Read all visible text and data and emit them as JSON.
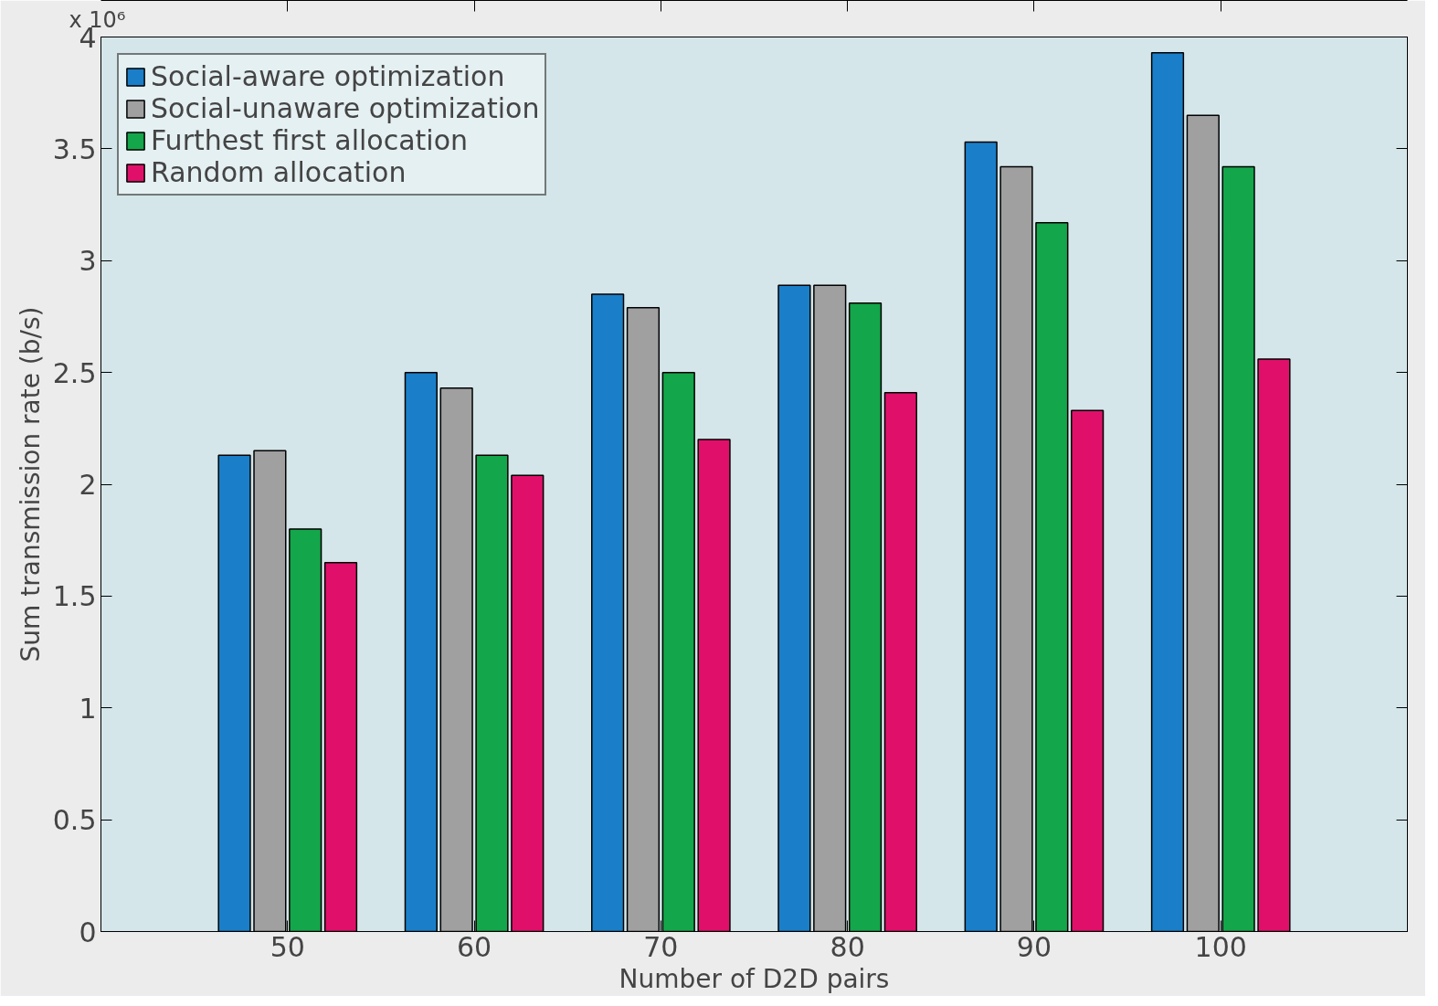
{
  "chart_data": {
    "type": "bar",
    "xlabel": "Number of D2D pairs",
    "ylabel": "Sum transmission rate (b/s)",
    "annotations": [
      "x 10⁶"
    ],
    "categories": [
      "50",
      "60",
      "70",
      "80",
      "90",
      "100"
    ],
    "series": [
      {
        "name": "Social-aware optimization",
        "color": "#1a7fc8",
        "values": [
          2.13,
          2.5,
          2.85,
          2.89,
          3.53,
          3.93
        ]
      },
      {
        "name": "Social-unaware optimization",
        "color": "#a0a0a0",
        "values": [
          2.15,
          2.43,
          2.79,
          2.89,
          3.42,
          3.65
        ]
      },
      {
        "name": "Furthest first allocation",
        "color": "#13a64a",
        "values": [
          1.8,
          2.13,
          2.5,
          2.81,
          3.17,
          3.42
        ]
      },
      {
        "name": "Random allocation",
        "color": "#e0106a",
        "values": [
          1.65,
          2.04,
          2.2,
          2.41,
          2.33,
          2.56
        ]
      }
    ],
    "ylim": [
      0,
      4
    ],
    "yticks": [
      0,
      0.5,
      1,
      1.5,
      2,
      2.5,
      3,
      3.5,
      4
    ],
    "grid": false,
    "legend": "top left"
  }
}
